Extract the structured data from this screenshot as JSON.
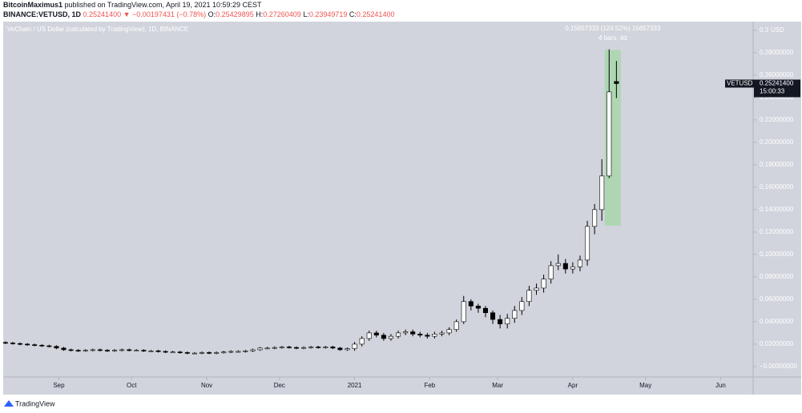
{
  "header": {
    "author": "BitcoinMaximus1",
    "published": "published on TradingView.com, April 19, 2021 10:59:29 CEST",
    "symbol": "BINANCE:VETUSD, 1D",
    "last": "0.25241400",
    "arrow": "▼",
    "change": "−0.00197431 (−0.78%)",
    "o_label": "O:",
    "o": "0.25429895",
    "h_label": "H:",
    "h": "0.27260409",
    "l_label": "L:",
    "l": "0.23949719",
    "c_label": "C:",
    "c": "0.25241400"
  },
  "footer": {
    "brand": "TradingView"
  },
  "chart_data": {
    "type": "candlestick",
    "title": "VeChain / US Dollar (calculated by TradingView), 1D, BINANCE",
    "y_unit": "USD",
    "up_color": "#ffffff",
    "down_color": "#000000",
    "wick_color": "#000000",
    "background": "#d1d4dc",
    "open": [
      0.0215,
      0.021,
      0.0205,
      0.02,
      0.0195,
      0.019,
      0.0185,
      0.018,
      0.0165,
      0.015,
      0.0145,
      0.014,
      0.0145,
      0.015,
      0.0145,
      0.014,
      0.0145,
      0.015,
      0.0145,
      0.0145,
      0.014,
      0.014,
      0.0135,
      0.013,
      0.013,
      0.0125,
      0.012,
      0.012,
      0.0125,
      0.012,
      0.0125,
      0.013,
      0.0135,
      0.0135,
      0.014,
      0.015,
      0.0165,
      0.0165,
      0.017,
      0.0175,
      0.017,
      0.0165,
      0.017,
      0.0175,
      0.017,
      0.0175,
      0.0165,
      0.015,
      0.016,
      0.02,
      0.025,
      0.03,
      0.028,
      0.025,
      0.027,
      0.03,
      0.031,
      0.029,
      0.028,
      0.027,
      0.029,
      0.03,
      0.033,
      0.04,
      0.058,
      0.054,
      0.052,
      0.048,
      0.042,
      0.038,
      0.043,
      0.05,
      0.058,
      0.068,
      0.07,
      0.078,
      0.09,
      0.092,
      0.087,
      0.089,
      0.095,
      0.125,
      0.14,
      0.17,
      0.25429895
    ],
    "high": [
      0.0225,
      0.022,
      0.0215,
      0.021,
      0.0205,
      0.02,
      0.0195,
      0.019,
      0.0175,
      0.016,
      0.0155,
      0.0155,
      0.016,
      0.016,
      0.0155,
      0.0155,
      0.016,
      0.016,
      0.0155,
      0.0155,
      0.015,
      0.015,
      0.0145,
      0.014,
      0.014,
      0.0135,
      0.013,
      0.0135,
      0.0135,
      0.0135,
      0.014,
      0.0145,
      0.0145,
      0.015,
      0.016,
      0.0175,
      0.0175,
      0.018,
      0.0185,
      0.0185,
      0.018,
      0.018,
      0.0185,
      0.0185,
      0.0185,
      0.0185,
      0.0175,
      0.017,
      0.022,
      0.027,
      0.032,
      0.032,
      0.03,
      0.029,
      0.032,
      0.033,
      0.033,
      0.031,
      0.03,
      0.031,
      0.032,
      0.035,
      0.042,
      0.063,
      0.06,
      0.056,
      0.054,
      0.05,
      0.046,
      0.047,
      0.054,
      0.062,
      0.072,
      0.074,
      0.082,
      0.094,
      0.1,
      0.096,
      0.093,
      0.099,
      0.13,
      0.145,
      0.185,
      0.283,
      0.27260409
    ],
    "low": [
      0.02,
      0.0195,
      0.019,
      0.0185,
      0.018,
      0.0175,
      0.017,
      0.0155,
      0.014,
      0.0135,
      0.013,
      0.013,
      0.0135,
      0.0135,
      0.013,
      0.013,
      0.0135,
      0.0135,
      0.0135,
      0.013,
      0.013,
      0.0125,
      0.012,
      0.012,
      0.0115,
      0.011,
      0.011,
      0.011,
      0.011,
      0.011,
      0.0115,
      0.012,
      0.0125,
      0.0125,
      0.013,
      0.014,
      0.0155,
      0.0155,
      0.016,
      0.016,
      0.0155,
      0.0155,
      0.016,
      0.016,
      0.016,
      0.0155,
      0.014,
      0.014,
      0.014,
      0.018,
      0.023,
      0.026,
      0.023,
      0.023,
      0.025,
      0.028,
      0.027,
      0.026,
      0.025,
      0.025,
      0.027,
      0.028,
      0.031,
      0.038,
      0.05,
      0.048,
      0.044,
      0.038,
      0.034,
      0.034,
      0.039,
      0.046,
      0.054,
      0.064,
      0.066,
      0.074,
      0.086,
      0.083,
      0.083,
      0.085,
      0.09,
      0.118,
      0.13,
      0.168,
      0.23949719
    ],
    "close": [
      0.021,
      0.0205,
      0.02,
      0.0195,
      0.019,
      0.0185,
      0.018,
      0.0165,
      0.015,
      0.0145,
      0.014,
      0.0145,
      0.015,
      0.0145,
      0.014,
      0.0145,
      0.015,
      0.0145,
      0.0145,
      0.014,
      0.014,
      0.0135,
      0.013,
      0.013,
      0.0125,
      0.012,
      0.012,
      0.0125,
      0.012,
      0.0125,
      0.013,
      0.0135,
      0.0135,
      0.014,
      0.015,
      0.0165,
      0.0165,
      0.017,
      0.0175,
      0.017,
      0.0165,
      0.017,
      0.0175,
      0.017,
      0.0175,
      0.0165,
      0.015,
      0.016,
      0.02,
      0.025,
      0.03,
      0.028,
      0.025,
      0.027,
      0.03,
      0.031,
      0.029,
      0.028,
      0.027,
      0.029,
      0.03,
      0.033,
      0.04,
      0.058,
      0.054,
      0.052,
      0.048,
      0.042,
      0.038,
      0.043,
      0.05,
      0.058,
      0.068,
      0.07,
      0.078,
      0.09,
      0.092,
      0.087,
      0.089,
      0.095,
      0.125,
      0.14,
      0.17,
      0.245,
      0.252414
    ],
    "xlim": [
      -0.1,
      102.8
    ],
    "xticks": [
      {
        "value": 7.33,
        "label": "Sep"
      },
      {
        "value": 17.33,
        "label": "Oct"
      },
      {
        "value": 27.67,
        "label": "Nov"
      },
      {
        "value": 37.67,
        "label": "Dec"
      },
      {
        "value": 48,
        "label": "2021"
      },
      {
        "value": 58.33,
        "label": "Feb"
      },
      {
        "value": 67.67,
        "label": "Mar"
      },
      {
        "value": 78,
        "label": "Apr"
      },
      {
        "value": 88,
        "label": "May"
      },
      {
        "value": 98.33,
        "label": "Jun"
      }
    ],
    "ylim": [
      -0.0086,
      0.307
    ],
    "yticks": [
      {
        "value": 0,
        "label": "−0.00000000"
      },
      {
        "value": 0.02,
        "label": "0.02000000"
      },
      {
        "value": 0.04,
        "label": "0.04000000"
      },
      {
        "value": 0.06,
        "label": "0.06000000"
      },
      {
        "value": 0.08,
        "label": "0.08000000"
      },
      {
        "value": 0.1,
        "label": "0.10000000"
      },
      {
        "value": 0.12,
        "label": "0.12000000"
      },
      {
        "value": 0.14,
        "label": "0.14000000"
      },
      {
        "value": 0.16,
        "label": "0.16000000"
      },
      {
        "value": 0.18,
        "label": "0.18000000"
      },
      {
        "value": 0.2,
        "label": "0.20000000"
      },
      {
        "value": 0.22,
        "label": "0.22000000"
      },
      {
        "value": 0.24,
        "label": "0.24000000"
      },
      {
        "value": 0.26,
        "label": "0.26000000"
      },
      {
        "value": 0.28,
        "label": "0.28000000"
      },
      0.3
    ],
    "measure": {
      "from": 0.1257,
      "to": 0.2823,
      "color": "#a5d6a7",
      "label": "0.15657333 (124.52%) 15657333",
      "bars": "4 bars, 4d"
    },
    "price_tag": {
      "value": 0.252414,
      "symbol": "VETUSD",
      "label": "0.25241400",
      "countdown": "15:00:33"
    }
  }
}
